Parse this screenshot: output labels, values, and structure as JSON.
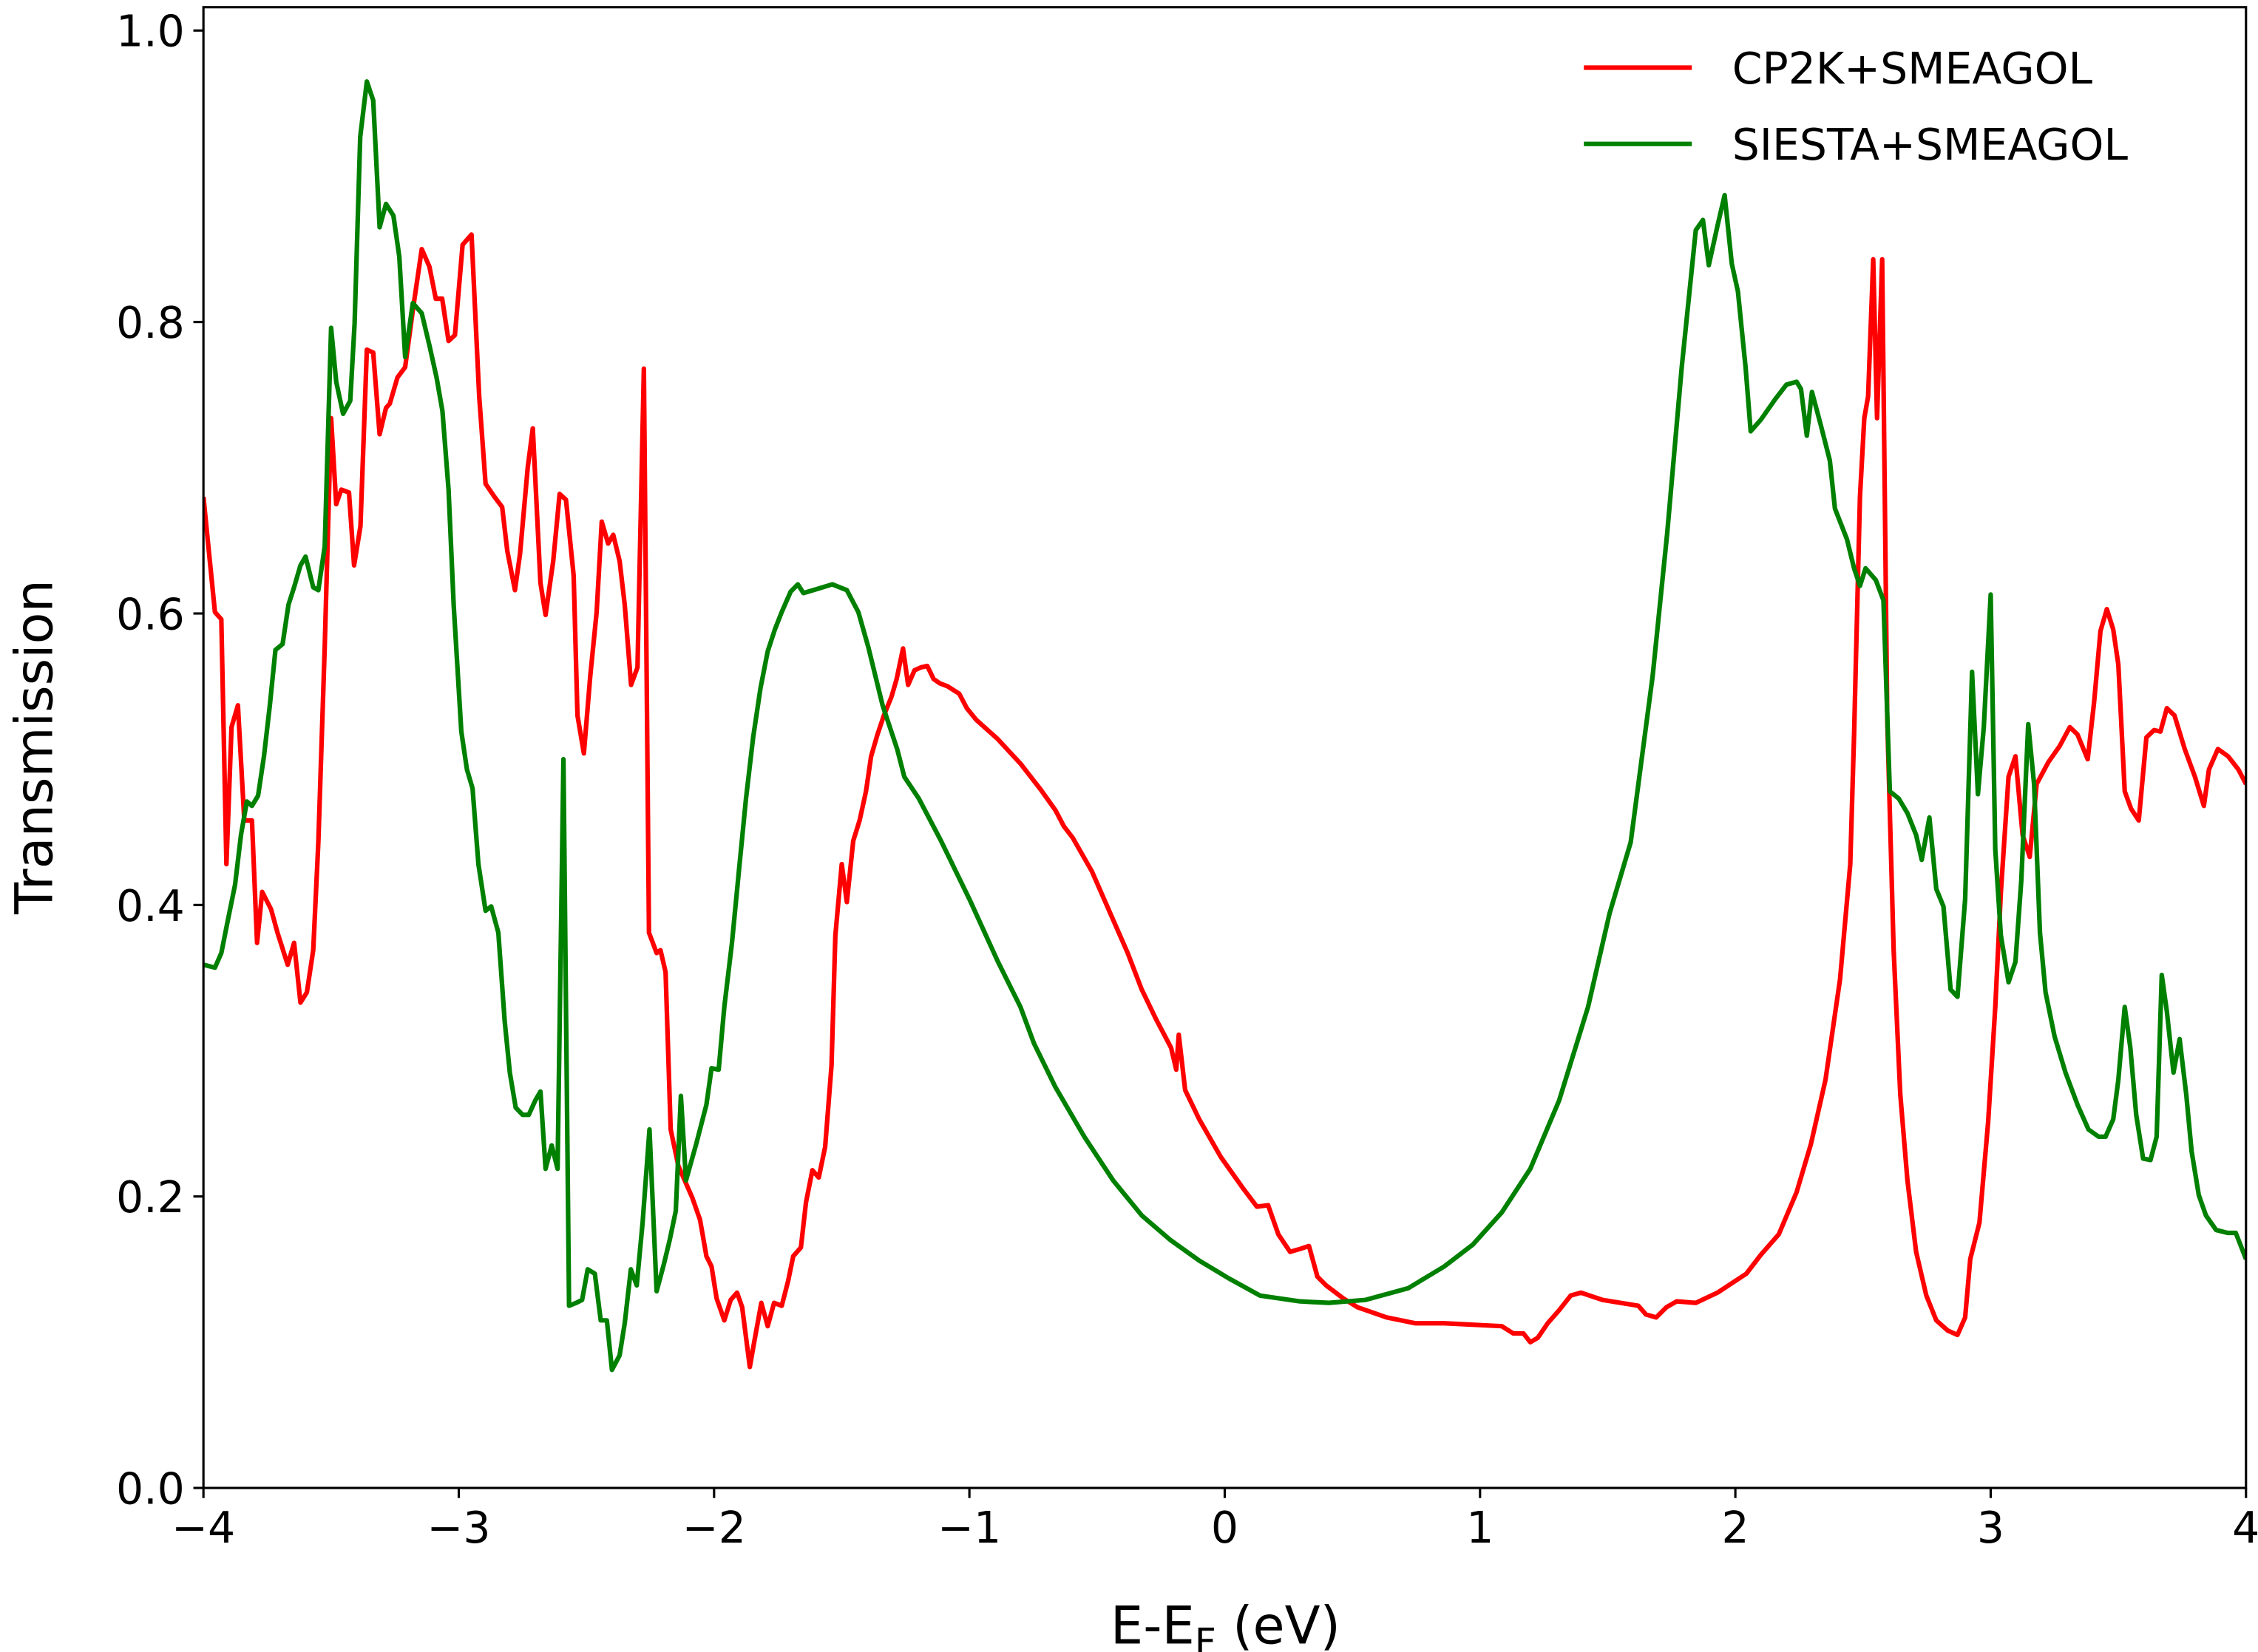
{
  "chart_data": {
    "type": "line",
    "xlabel": [
      "E-E",
      "F",
      " (eV)"
    ],
    "ylabel": "Transmission",
    "xlim": [
      -4,
      4
    ],
    "ylim": [
      0,
      1.016
    ],
    "xticks": [
      {
        "value": -4,
        "label": "−4"
      },
      {
        "value": -3,
        "label": "−3"
      },
      {
        "value": -2,
        "label": "−2"
      },
      {
        "value": -1,
        "label": "−1"
      },
      0,
      1,
      2,
      3,
      4
    ],
    "yticks": [
      {
        "value": 0,
        "label": "0.0"
      },
      0.2,
      0.4,
      0.6,
      0.8,
      {
        "value": 1,
        "label": "1.0"
      }
    ],
    "grid": false,
    "legend": "upper right",
    "series": [
      {
        "name": "CP2K+SMEAGOL",
        "color": "#ff0000",
        "x": [
          -4.0,
          -3.955,
          -3.93,
          -3.91,
          -3.89,
          -3.865,
          -3.84,
          -3.81,
          -3.79,
          -3.77,
          -3.735,
          -3.71,
          -3.67,
          -3.645,
          -3.62,
          -3.595,
          -3.57,
          -3.55,
          -3.525,
          -3.5,
          -3.48,
          -3.46,
          -3.43,
          -3.41,
          -3.385,
          -3.36,
          -3.335,
          -3.31,
          -3.285,
          -3.27,
          -3.24,
          -3.21,
          -3.18,
          -3.145,
          -3.115,
          -3.09,
          -3.065,
          -3.04,
          -3.015,
          -2.985,
          -2.95,
          -2.92,
          -2.895,
          -2.86,
          -2.83,
          -2.81,
          -2.78,
          -2.76,
          -2.73,
          -2.71,
          -2.68,
          -2.66,
          -2.63,
          -2.605,
          -2.58,
          -2.55,
          -2.535,
          -2.51,
          -2.485,
          -2.46,
          -2.44,
          -2.415,
          -2.395,
          -2.37,
          -2.35,
          -2.325,
          -2.3,
          -2.275,
          -2.255,
          -2.225,
          -2.21,
          -2.19,
          -2.17,
          -2.14,
          -2.11,
          -2.085,
          -2.055,
          -2.03,
          -2.01,
          -1.99,
          -1.96,
          -1.935,
          -1.91,
          -1.89,
          -1.86,
          -1.845,
          -1.815,
          -1.79,
          -1.765,
          -1.735,
          -1.71,
          -1.69,
          -1.66,
          -1.64,
          -1.615,
          -1.59,
          -1.565,
          -1.54,
          -1.525,
          -1.5,
          -1.48,
          -1.455,
          -1.43,
          -1.405,
          -1.385,
          -1.36,
          -1.335,
          -1.305,
          -1.285,
          -1.26,
          -1.24,
          -1.215,
          -1.19,
          -1.165,
          -1.14,
          -1.115,
          -1.085,
          -1.04,
          -1.01,
          -0.973,
          -0.89,
          -0.8,
          -0.72,
          -0.663,
          -0.63,
          -0.595,
          -0.52,
          -0.44,
          -0.38,
          -0.325,
          -0.27,
          -0.21,
          -0.19,
          -0.18,
          -0.155,
          -0.1,
          -0.015,
          0.07,
          0.126,
          0.17,
          0.21,
          0.256,
          0.295,
          0.33,
          0.363,
          0.397,
          0.465,
          0.52,
          0.634,
          0.746,
          0.86,
          1.085,
          1.13,
          1.17,
          1.197,
          1.226,
          1.265,
          1.31,
          1.355,
          1.395,
          1.48,
          1.62,
          1.65,
          1.69,
          1.73,
          1.77,
          1.845,
          1.93,
          2.043,
          2.1,
          2.17,
          2.24,
          2.296,
          2.353,
          2.41,
          2.45,
          2.465,
          2.488,
          2.505,
          2.52,
          2.54,
          2.555,
          2.575,
          2.595,
          2.62,
          2.646,
          2.674,
          2.708,
          2.748,
          2.787,
          2.832,
          2.87,
          2.9,
          2.92,
          2.956,
          2.99,
          3.018,
          3.04,
          3.07,
          3.097,
          3.125,
          3.153,
          3.18,
          3.226,
          3.27,
          3.31,
          3.34,
          3.38,
          3.405,
          3.43,
          3.455,
          3.48,
          3.5,
          3.525,
          3.55,
          3.58,
          3.61,
          3.64,
          3.665,
          3.69,
          3.72,
          3.76,
          3.8,
          3.835,
          3.855,
          3.89,
          3.93,
          3.97,
          4.0
        ],
        "values": [
          0.68,
          0.601,
          0.596,
          0.428,
          0.522,
          0.537,
          0.458,
          0.458,
          0.374,
          0.409,
          0.397,
          0.381,
          0.359,
          0.374,
          0.333,
          0.34,
          0.369,
          0.443,
          0.577,
          0.734,
          0.675,
          0.685,
          0.683,
          0.633,
          0.66,
          0.781,
          0.779,
          0.723,
          0.741,
          0.744,
          0.762,
          0.769,
          0.808,
          0.85,
          0.838,
          0.816,
          0.816,
          0.787,
          0.791,
          0.853,
          0.86,
          0.749,
          0.689,
          0.68,
          0.673,
          0.643,
          0.616,
          0.641,
          0.7,
          0.727,
          0.621,
          0.599,
          0.636,
          0.682,
          0.678,
          0.626,
          0.53,
          0.504,
          0.557,
          0.601,
          0.663,
          0.648,
          0.654,
          0.636,
          0.606,
          0.551,
          0.563,
          0.768,
          0.381,
          0.367,
          0.369,
          0.354,
          0.246,
          0.221,
          0.209,
          0.199,
          0.184,
          0.159,
          0.152,
          0.13,
          0.115,
          0.129,
          0.134,
          0.124,
          0.083,
          0.098,
          0.127,
          0.111,
          0.127,
          0.125,
          0.142,
          0.159,
          0.165,
          0.196,
          0.218,
          0.213,
          0.234,
          0.29,
          0.379,
          0.428,
          0.402,
          0.444,
          0.458,
          0.478,
          0.502,
          0.517,
          0.53,
          0.543,
          0.555,
          0.576,
          0.551,
          0.561,
          0.563,
          0.564,
          0.555,
          0.552,
          0.55,
          0.545,
          0.535,
          0.527,
          0.514,
          0.497,
          0.479,
          0.465,
          0.454,
          0.446,
          0.423,
          0.391,
          0.367,
          0.342,
          0.322,
          0.302,
          0.287,
          0.311,
          0.273,
          0.253,
          0.227,
          0.206,
          0.193,
          0.194,
          0.174,
          0.162,
          0.164,
          0.166,
          0.145,
          0.139,
          0.13,
          0.124,
          0.117,
          0.113,
          0.113,
          0.111,
          0.106,
          0.106,
          0.1,
          0.103,
          0.113,
          0.122,
          0.132,
          0.134,
          0.129,
          0.125,
          0.119,
          0.117,
          0.124,
          0.128,
          0.127,
          0.134,
          0.147,
          0.16,
          0.174,
          0.203,
          0.236,
          0.28,
          0.349,
          0.428,
          0.517,
          0.68,
          0.734,
          0.749,
          0.843,
          0.734,
          0.843,
          0.527,
          0.369,
          0.27,
          0.211,
          0.162,
          0.132,
          0.115,
          0.108,
          0.105,
          0.117,
          0.157,
          0.182,
          0.251,
          0.33,
          0.409,
          0.488,
          0.502,
          0.448,
          0.433,
          0.483,
          0.498,
          0.509,
          0.522,
          0.517,
          0.5,
          0.539,
          0.588,
          0.603,
          0.589,
          0.565,
          0.478,
          0.466,
          0.458,
          0.515,
          0.52,
          0.519,
          0.535,
          0.53,
          0.507,
          0.488,
          0.468,
          0.493,
          0.507,
          0.502,
          0.493,
          0.483
        ]
      },
      {
        "name": "SIESTA+SMEAGOL",
        "color": "#008000",
        "x": [
          -4.0,
          -3.955,
          -3.93,
          -3.905,
          -3.876,
          -3.853,
          -3.83,
          -3.81,
          -3.786,
          -3.763,
          -3.74,
          -3.718,
          -3.69,
          -3.667,
          -3.645,
          -3.62,
          -3.6,
          -3.57,
          -3.55,
          -3.525,
          -3.5,
          -3.48,
          -3.453,
          -3.425,
          -3.408,
          -3.386,
          -3.36,
          -3.335,
          -3.31,
          -3.285,
          -3.256,
          -3.233,
          -3.21,
          -3.18,
          -3.145,
          -3.115,
          -3.087,
          -3.064,
          -3.04,
          -3.02,
          -2.99,
          -2.968,
          -2.946,
          -2.923,
          -2.895,
          -2.873,
          -2.845,
          -2.82,
          -2.8,
          -2.777,
          -2.75,
          -2.726,
          -2.7,
          -2.68,
          -2.66,
          -2.636,
          -2.613,
          -2.59,
          -2.568,
          -2.54,
          -2.517,
          -2.495,
          -2.467,
          -2.444,
          -2.42,
          -2.4,
          -2.37,
          -2.35,
          -2.326,
          -2.303,
          -2.28,
          -2.253,
          -2.225,
          -2.196,
          -2.174,
          -2.15,
          -2.13,
          -2.11,
          -2.07,
          -2.03,
          -2.01,
          -1.982,
          -1.96,
          -1.93,
          -1.903,
          -1.875,
          -1.847,
          -1.818,
          -1.79,
          -1.762,
          -1.735,
          -1.7,
          -1.672,
          -1.65,
          -1.593,
          -1.537,
          -1.48,
          -1.435,
          -1.396,
          -1.34,
          -1.283,
          -1.255,
          -1.198,
          -1.114,
          -1.0,
          -0.888,
          -0.8,
          -0.747,
          -0.663,
          -0.55,
          -0.437,
          -0.325,
          -0.212,
          -0.1,
          0.014,
          0.138,
          0.295,
          0.408,
          0.55,
          0.718,
          0.86,
          0.972,
          1.085,
          1.197,
          1.31,
          1.423,
          1.507,
          1.59,
          1.676,
          1.733,
          1.79,
          1.845,
          1.873,
          1.896,
          1.93,
          1.958,
          1.986,
          2.01,
          2.04,
          2.06,
          2.1,
          2.156,
          2.2,
          2.24,
          2.257,
          2.28,
          2.3,
          2.335,
          2.37,
          2.39,
          2.437,
          2.465,
          2.488,
          2.51,
          2.55,
          2.58,
          2.605,
          2.64,
          2.674,
          2.708,
          2.73,
          2.76,
          2.787,
          2.815,
          2.843,
          2.87,
          2.9,
          2.927,
          2.95,
          2.973,
          3.0,
          3.018,
          3.04,
          3.07,
          3.097,
          3.12,
          3.147,
          3.17,
          3.193,
          3.215,
          3.25,
          3.293,
          3.34,
          3.383,
          3.423,
          3.45,
          3.48,
          3.5,
          3.525,
          3.547,
          3.57,
          3.597,
          3.626,
          3.65,
          3.67,
          3.69,
          3.716,
          3.74,
          3.766,
          3.787,
          3.815,
          3.843,
          3.883,
          3.928,
          3.96,
          4.0
        ],
        "values": [
          0.359,
          0.357,
          0.367,
          0.389,
          0.414,
          0.448,
          0.471,
          0.468,
          0.475,
          0.502,
          0.537,
          0.575,
          0.579,
          0.606,
          0.618,
          0.633,
          0.639,
          0.618,
          0.616,
          0.646,
          0.796,
          0.759,
          0.737,
          0.746,
          0.799,
          0.927,
          0.965,
          0.952,
          0.865,
          0.881,
          0.873,
          0.845,
          0.776,
          0.813,
          0.806,
          0.784,
          0.762,
          0.739,
          0.685,
          0.606,
          0.519,
          0.493,
          0.48,
          0.428,
          0.396,
          0.399,
          0.381,
          0.32,
          0.285,
          0.261,
          0.256,
          0.256,
          0.266,
          0.272,
          0.219,
          0.235,
          0.219,
          0.5,
          0.125,
          0.127,
          0.129,
          0.15,
          0.147,
          0.115,
          0.115,
          0.081,
          0.091,
          0.113,
          0.15,
          0.139,
          0.182,
          0.246,
          0.135,
          0.154,
          0.17,
          0.19,
          0.269,
          0.211,
          0.236,
          0.263,
          0.288,
          0.287,
          0.33,
          0.374,
          0.423,
          0.473,
          0.515,
          0.549,
          0.574,
          0.589,
          0.601,
          0.615,
          0.62,
          0.614,
          0.617,
          0.62,
          0.616,
          0.601,
          0.577,
          0.537,
          0.507,
          0.488,
          0.473,
          0.445,
          0.404,
          0.361,
          0.33,
          0.305,
          0.275,
          0.241,
          0.211,
          0.187,
          0.17,
          0.156,
          0.144,
          0.132,
          0.128,
          0.127,
          0.129,
          0.137,
          0.152,
          0.167,
          0.189,
          0.219,
          0.266,
          0.33,
          0.394,
          0.443,
          0.557,
          0.655,
          0.769,
          0.863,
          0.87,
          0.839,
          0.866,
          0.887,
          0.84,
          0.821,
          0.769,
          0.725,
          0.733,
          0.747,
          0.757,
          0.759,
          0.754,
          0.722,
          0.752,
          0.729,
          0.705,
          0.672,
          0.651,
          0.631,
          0.619,
          0.631,
          0.623,
          0.609,
          0.478,
          0.473,
          0.463,
          0.448,
          0.431,
          0.46,
          0.411,
          0.399,
          0.342,
          0.337,
          0.404,
          0.56,
          0.476,
          0.522,
          0.613,
          0.438,
          0.379,
          0.347,
          0.361,
          0.417,
          0.524,
          0.483,
          0.381,
          0.34,
          0.31,
          0.285,
          0.263,
          0.246,
          0.241,
          0.241,
          0.253,
          0.28,
          0.33,
          0.302,
          0.256,
          0.226,
          0.225,
          0.241,
          0.352,
          0.327,
          0.285,
          0.308,
          0.27,
          0.231,
          0.201,
          0.187,
          0.177,
          0.175,
          0.175,
          0.157
        ]
      }
    ]
  }
}
